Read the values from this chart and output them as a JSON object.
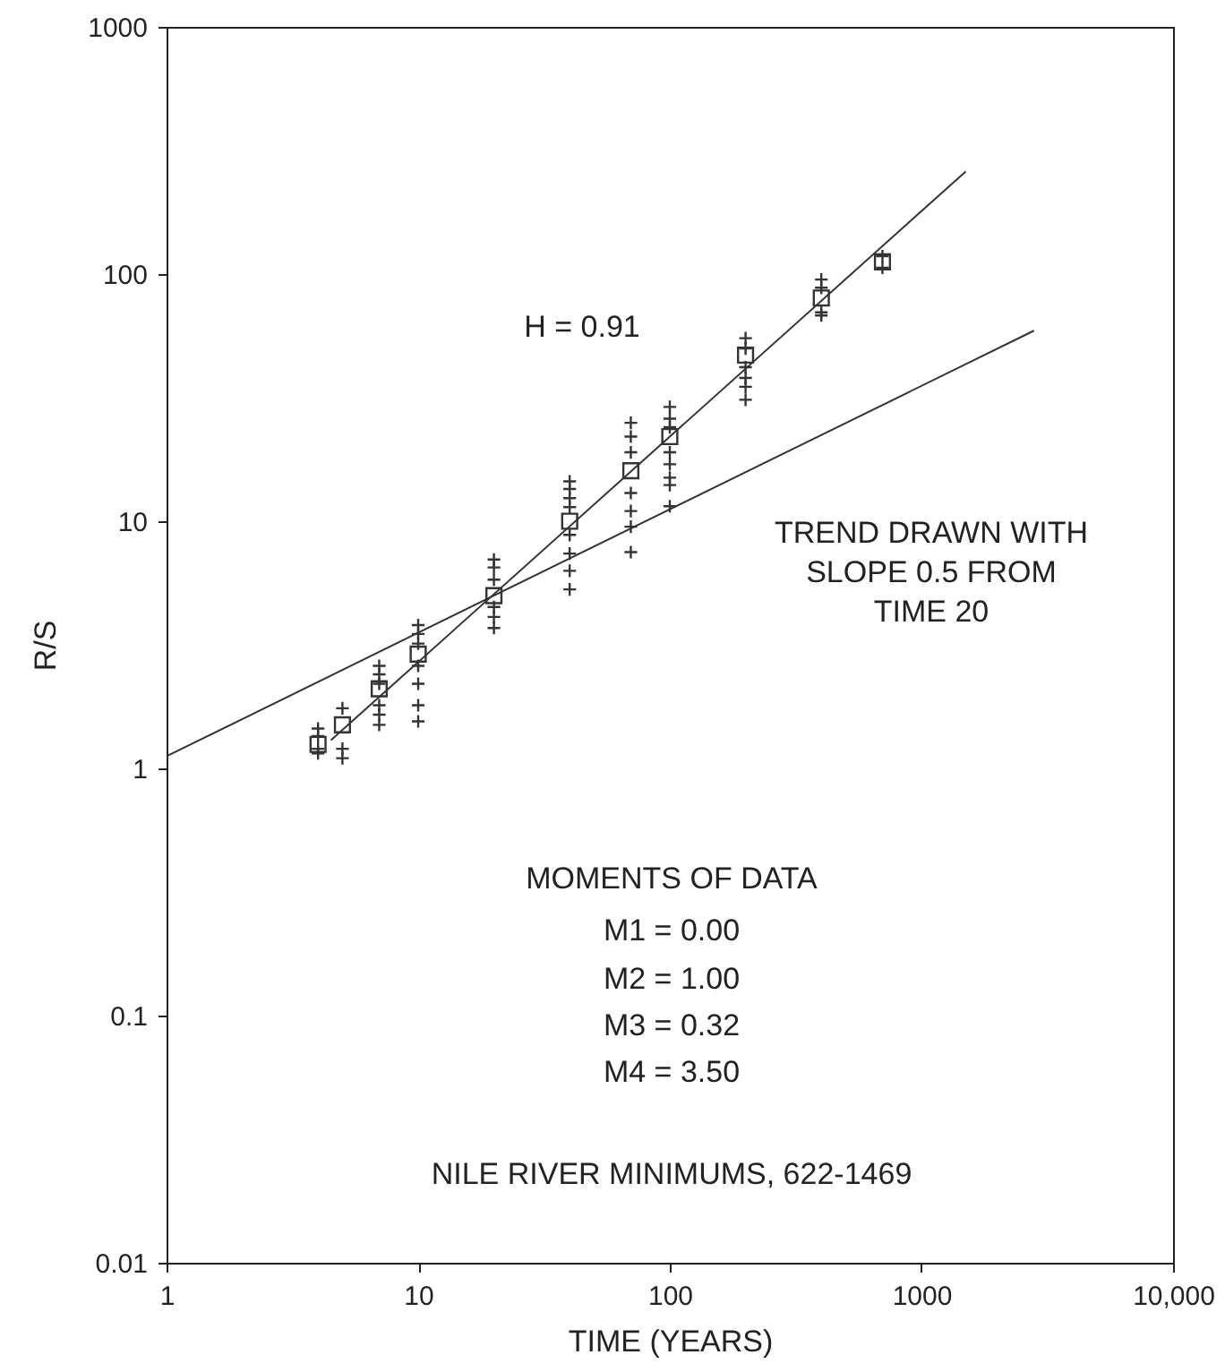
{
  "chart_data": {
    "type": "scatter",
    "xlabel": "TIME (YEARS)",
    "ylabel": "R/S",
    "log": "xy",
    "grid": false,
    "xlim": [
      1,
      10000
    ],
    "xticks": [
      1,
      10,
      100,
      1000,
      {
        "value": 10000,
        "label": "10,000"
      }
    ],
    "ylim": [
      0.01,
      1000
    ],
    "yticks": [
      0.01,
      0.1,
      1,
      10,
      100,
      1000
    ],
    "series": [
      {
        "type": "scatter",
        "marker": "cross",
        "color": "#333333",
        "x": [
          4,
          4,
          4,
          4,
          5,
          5,
          5,
          7,
          7,
          7,
          7,
          7,
          7,
          10,
          10,
          10,
          10,
          10,
          10,
          10,
          20,
          20,
          20,
          20,
          20,
          20,
          40,
          40,
          40,
          40,
          40,
          40,
          40,
          40,
          70,
          70,
          70,
          70,
          70,
          70,
          70,
          100,
          100,
          100,
          100,
          100,
          100,
          100,
          100,
          200,
          200,
          200,
          200,
          200,
          200,
          400,
          400,
          400,
          400,
          700,
          700
        ],
        "values": [
          1.45,
          1.35,
          1.2,
          1.15,
          1.75,
          1.2,
          1.1,
          2.6,
          2.4,
          2.2,
          1.8,
          1.65,
          1.5,
          3.8,
          3.5,
          3.2,
          2.6,
          2.2,
          1.8,
          1.55,
          7,
          6.5,
          5.8,
          4.5,
          4.1,
          3.7,
          14.5,
          13.5,
          12.4,
          11.4,
          8.8,
          7.4,
          6.3,
          5.3,
          25,
          22,
          19,
          13,
          11,
          9.5,
          7.5,
          29,
          26,
          24,
          19,
          17,
          15,
          14,
          11.5,
          55,
          50,
          42,
          38,
          35,
          31,
          95,
          88,
          70,
          68,
          118,
          106
        ]
      },
      {
        "type": "scatter",
        "marker": "square",
        "color": "#333333",
        "x": [
          4,
          5,
          7,
          10,
          20,
          40,
          70,
          100,
          200,
          400,
          700
        ],
        "values": [
          1.25,
          1.5,
          2.1,
          2.9,
          5,
          10,
          16,
          22,
          47,
          80,
          112
        ]
      },
      {
        "type": "line",
        "marker": "none",
        "color": "#333333",
        "x": [
          4.5,
          1500
        ],
        "values": [
          1.3,
          260
        ]
      },
      {
        "type": "line",
        "marker": "none",
        "color": "#333333",
        "x": [
          1,
          2800
        ],
        "values": [
          1.12,
          59
        ]
      }
    ],
    "annotations": [
      "H = 0.91",
      "TREND DRAWN WITH\nSLOPE 0.5 FROM\nTIME 20",
      "MOMENTS OF DATA",
      "M1 = 0.00",
      "M2 = 1.00",
      "M3 = 0.32",
      "M4 = 3.50",
      "NILE RIVER MINIMUMS, 622-1469"
    ]
  }
}
